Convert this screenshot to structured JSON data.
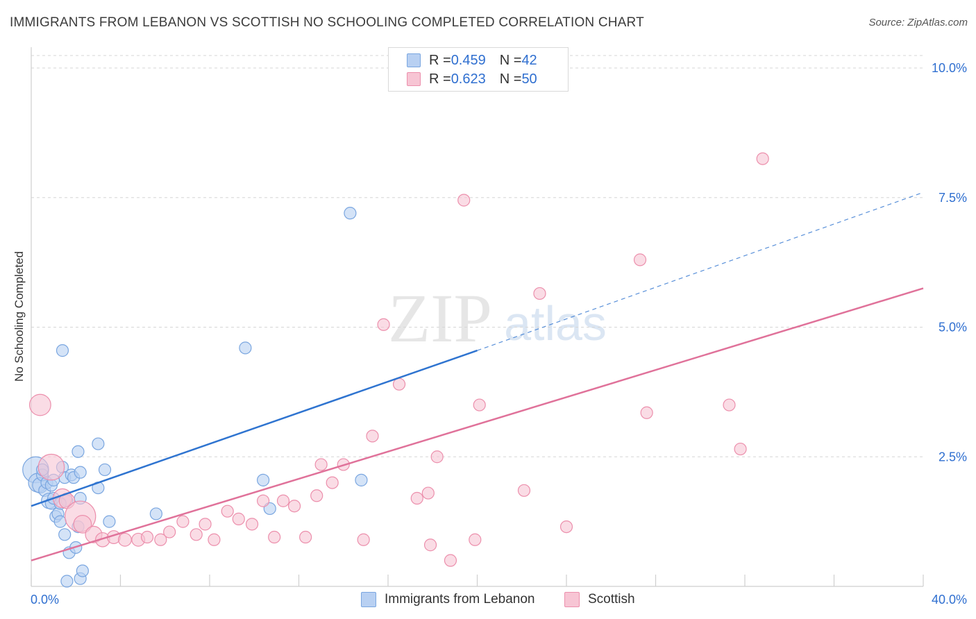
{
  "title": "IMMIGRANTS FROM LEBANON VS SCOTTISH NO SCHOOLING COMPLETED CORRELATION CHART",
  "source": "Source: ZipAtlas.com",
  "watermark": {
    "zip": "ZIP",
    "atlas": "atlas"
  },
  "legend": {
    "rows": [
      {
        "r_label": "R = ",
        "r_value": "0.459",
        "n_label": "N = ",
        "n_value": "42"
      },
      {
        "r_label": "R = ",
        "r_value": "0.623",
        "n_label": "N = ",
        "n_value": "50"
      }
    ]
  },
  "bottom_legend": [
    "Immigrants from Lebanon",
    "Scottish"
  ],
  "colors": {
    "lebanon_fill": "#b8d0f2",
    "lebanon_stroke": "#7aa6e0",
    "lebanon_line": "#2f74d0",
    "scottish_fill": "#f7c5d4",
    "scottish_stroke": "#ec8fac",
    "scottish_line": "#e0729a",
    "axis_text": "#2f6fd0",
    "grid": "#d6d6d6"
  },
  "chart_data": {
    "type": "scatter",
    "title": "IMMIGRANTS FROM LEBANON VS SCOTTISH NO SCHOOLING COMPLETED CORRELATION CHART",
    "xlabel": "",
    "ylabel": "No Schooling Completed",
    "xlim": [
      0,
      40
    ],
    "ylim": [
      0,
      10.5
    ],
    "x_tick_labels": [
      {
        "value": 0,
        "label": "0.0%"
      },
      {
        "value": 40,
        "label": "40.0%"
      }
    ],
    "y_tick_labels": [
      {
        "value": 2.5,
        "label": "2.5%"
      },
      {
        "value": 5.0,
        "label": "5.0%"
      },
      {
        "value": 7.5,
        "label": "7.5%"
      },
      {
        "value": 10.0,
        "label": "10.0%"
      }
    ],
    "series": [
      {
        "name": "Immigrants from Lebanon",
        "R": 0.459,
        "N": 42,
        "trend": {
          "x0": 0,
          "y0": 1.55,
          "x1": 20,
          "y1": 4.55,
          "dash_x1": 40,
          "dash_y1": 7.6
        },
        "points": [
          {
            "x": 0.2,
            "y": 2.25,
            "s": 2.2
          },
          {
            "x": 0.3,
            "y": 2.0,
            "s": 1.6
          },
          {
            "x": 0.4,
            "y": 1.95,
            "s": 1.3
          },
          {
            "x": 0.5,
            "y": 2.15,
            "s": 1
          },
          {
            "x": 0.6,
            "y": 1.85,
            "s": 1
          },
          {
            "x": 0.7,
            "y": 2.0,
            "s": 1
          },
          {
            "x": 0.8,
            "y": 1.65,
            "s": 1.3
          },
          {
            "x": 0.9,
            "y": 1.6,
            "s": 1
          },
          {
            "x": 1.0,
            "y": 1.7,
            "s": 1
          },
          {
            "x": 1.1,
            "y": 1.35,
            "s": 1
          },
          {
            "x": 1.2,
            "y": 1.4,
            "s": 1
          },
          {
            "x": 1.3,
            "y": 1.25,
            "s": 1
          },
          {
            "x": 1.4,
            "y": 2.3,
            "s": 1
          },
          {
            "x": 1.5,
            "y": 2.1,
            "s": 1
          },
          {
            "x": 1.6,
            "y": 1.65,
            "s": 1
          },
          {
            "x": 1.5,
            "y": 1.0,
            "s": 1
          },
          {
            "x": 1.7,
            "y": 0.65,
            "s": 1
          },
          {
            "x": 1.6,
            "y": 0.1,
            "s": 1
          },
          {
            "x": 1.4,
            "y": 4.55,
            "s": 1
          },
          {
            "x": 1.8,
            "y": 2.15,
            "s": 1
          },
          {
            "x": 1.9,
            "y": 2.1,
            "s": 1
          },
          {
            "x": 2.0,
            "y": 0.75,
            "s": 1
          },
          {
            "x": 2.1,
            "y": 2.6,
            "s": 1
          },
          {
            "x": 2.2,
            "y": 2.2,
            "s": 1
          },
          {
            "x": 2.1,
            "y": 1.15,
            "s": 1
          },
          {
            "x": 2.2,
            "y": 0.15,
            "s": 1
          },
          {
            "x": 2.3,
            "y": 0.3,
            "s": 1
          },
          {
            "x": 2.2,
            "y": 1.7,
            "s": 1
          },
          {
            "x": 3.0,
            "y": 2.75,
            "s": 1
          },
          {
            "x": 3.0,
            "y": 1.9,
            "s": 1
          },
          {
            "x": 3.3,
            "y": 2.25,
            "s": 1
          },
          {
            "x": 3.5,
            "y": 1.25,
            "s": 1
          },
          {
            "x": 5.6,
            "y": 1.4,
            "s": 1
          },
          {
            "x": 9.6,
            "y": 4.6,
            "s": 1
          },
          {
            "x": 10.4,
            "y": 2.05,
            "s": 1
          },
          {
            "x": 10.7,
            "y": 1.5,
            "s": 1
          },
          {
            "x": 14.3,
            "y": 7.2,
            "s": 1
          },
          {
            "x": 14.8,
            "y": 2.05,
            "s": 1
          },
          {
            "x": 0.5,
            "y": 2.25,
            "s": 1
          },
          {
            "x": 0.9,
            "y": 1.95,
            "s": 1
          },
          {
            "x": 1.0,
            "y": 2.05,
            "s": 1
          },
          {
            "x": 1.3,
            "y": 1.6,
            "s": 1
          }
        ]
      },
      {
        "name": "Scottish",
        "R": 0.623,
        "N": 50,
        "trend": {
          "x0": 0,
          "y0": 0.5,
          "x1": 40,
          "y1": 5.75
        },
        "points": [
          {
            "x": 0.4,
            "y": 3.5,
            "s": 1.8
          },
          {
            "x": 0.9,
            "y": 2.3,
            "s": 2.2
          },
          {
            "x": 1.4,
            "y": 1.7,
            "s": 1.6
          },
          {
            "x": 1.6,
            "y": 1.65,
            "s": 1.3
          },
          {
            "x": 2.2,
            "y": 1.35,
            "s": 2.6
          },
          {
            "x": 2.3,
            "y": 1.2,
            "s": 1.5
          },
          {
            "x": 2.8,
            "y": 1.0,
            "s": 1.4
          },
          {
            "x": 3.2,
            "y": 0.9,
            "s": 1.2
          },
          {
            "x": 3.7,
            "y": 0.95,
            "s": 1.1
          },
          {
            "x": 4.2,
            "y": 0.9,
            "s": 1.1
          },
          {
            "x": 4.8,
            "y": 0.9,
            "s": 1.1
          },
          {
            "x": 5.2,
            "y": 0.95,
            "s": 1
          },
          {
            "x": 5.8,
            "y": 0.9,
            "s": 1
          },
          {
            "x": 6.2,
            "y": 1.05,
            "s": 1
          },
          {
            "x": 6.8,
            "y": 1.25,
            "s": 1
          },
          {
            "x": 7.4,
            "y": 1.0,
            "s": 1
          },
          {
            "x": 7.8,
            "y": 1.2,
            "s": 1
          },
          {
            "x": 8.2,
            "y": 0.9,
            "s": 1
          },
          {
            "x": 8.8,
            "y": 1.45,
            "s": 1
          },
          {
            "x": 9.3,
            "y": 1.3,
            "s": 1
          },
          {
            "x": 9.9,
            "y": 1.2,
            "s": 1
          },
          {
            "x": 10.4,
            "y": 1.65,
            "s": 1
          },
          {
            "x": 10.9,
            "y": 0.95,
            "s": 1
          },
          {
            "x": 11.3,
            "y": 1.65,
            "s": 1
          },
          {
            "x": 11.8,
            "y": 1.55,
            "s": 1
          },
          {
            "x": 12.3,
            "y": 0.95,
            "s": 1
          },
          {
            "x": 12.8,
            "y": 1.75,
            "s": 1
          },
          {
            "x": 13.0,
            "y": 2.35,
            "s": 1
          },
          {
            "x": 13.5,
            "y": 2.0,
            "s": 1
          },
          {
            "x": 14.0,
            "y": 2.35,
            "s": 1
          },
          {
            "x": 14.9,
            "y": 0.9,
            "s": 1
          },
          {
            "x": 15.3,
            "y": 2.9,
            "s": 1
          },
          {
            "x": 15.8,
            "y": 5.05,
            "s": 1
          },
          {
            "x": 16.5,
            "y": 3.9,
            "s": 1
          },
          {
            "x": 17.3,
            "y": 1.7,
            "s": 1
          },
          {
            "x": 17.8,
            "y": 1.8,
            "s": 1
          },
          {
            "x": 17.9,
            "y": 0.8,
            "s": 1
          },
          {
            "x": 18.2,
            "y": 2.5,
            "s": 1
          },
          {
            "x": 18.8,
            "y": 0.5,
            "s": 1
          },
          {
            "x": 19.4,
            "y": 7.45,
            "s": 1
          },
          {
            "x": 19.9,
            "y": 0.9,
            "s": 1
          },
          {
            "x": 20.1,
            "y": 3.5,
            "s": 1
          },
          {
            "x": 22.1,
            "y": 1.85,
            "s": 1
          },
          {
            "x": 22.8,
            "y": 5.65,
            "s": 1
          },
          {
            "x": 24.0,
            "y": 1.15,
            "s": 1
          },
          {
            "x": 27.3,
            "y": 6.3,
            "s": 1
          },
          {
            "x": 27.6,
            "y": 3.35,
            "s": 1
          },
          {
            "x": 31.3,
            "y": 3.5,
            "s": 1
          },
          {
            "x": 31.8,
            "y": 2.65,
            "s": 1
          },
          {
            "x": 32.8,
            "y": 8.25,
            "s": 1
          }
        ]
      }
    ]
  }
}
